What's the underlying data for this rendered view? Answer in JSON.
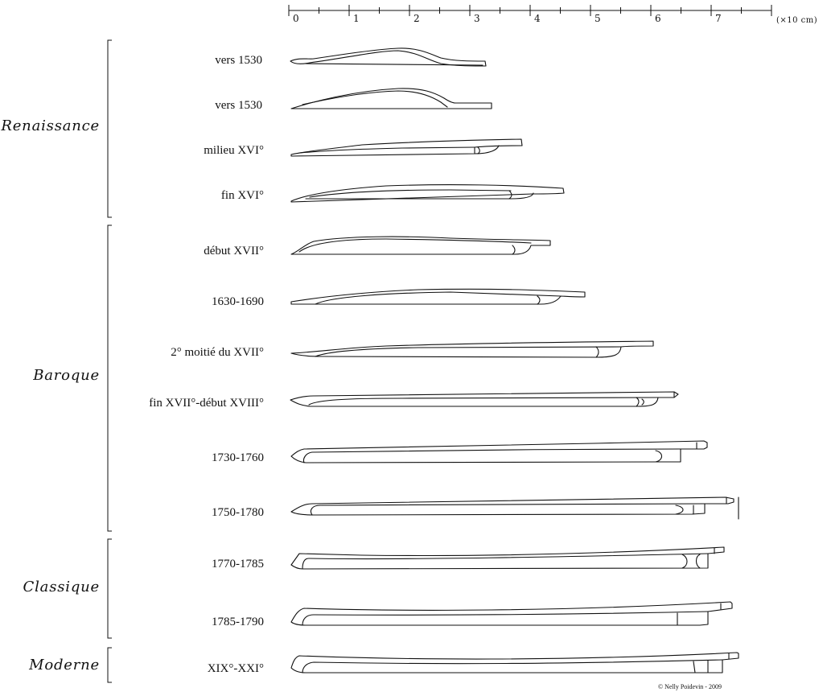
{
  "scale": {
    "ticks": [
      "0",
      "1",
      "2",
      "3",
      "4",
      "5",
      "6",
      "7"
    ],
    "unit": "(×10 cm)"
  },
  "periods": [
    {
      "name": "Renaissance"
    },
    {
      "name": "Baroque"
    },
    {
      "name": "Classique"
    },
    {
      "name": "Moderne"
    }
  ],
  "bows": [
    {
      "label": "vers 1530",
      "length": 3.2
    },
    {
      "label": "vers 1530",
      "length": 3.3
    },
    {
      "label": "milieu XVI°",
      "length": 3.8
    },
    {
      "label": "fin XVI°",
      "length": 4.5
    },
    {
      "label": "début XVII°",
      "length": 4.3
    },
    {
      "label": "1630-1690",
      "length": 4.9
    },
    {
      "label": "2° moitié du XVII°",
      "length": 6.0
    },
    {
      "label": "fin XVII°-début XVIII°",
      "length": 6.4
    },
    {
      "label": "1730-1760",
      "length": 6.9
    },
    {
      "label": "1750-1780",
      "length": 7.4
    },
    {
      "label": "1770-1785",
      "length": 7.2
    },
    {
      "label": "1785-1790",
      "length": 7.3
    },
    {
      "label": "XIX°-XXI°",
      "length": 7.4
    }
  ],
  "credit": "© Nelly Poidevin - 2009"
}
